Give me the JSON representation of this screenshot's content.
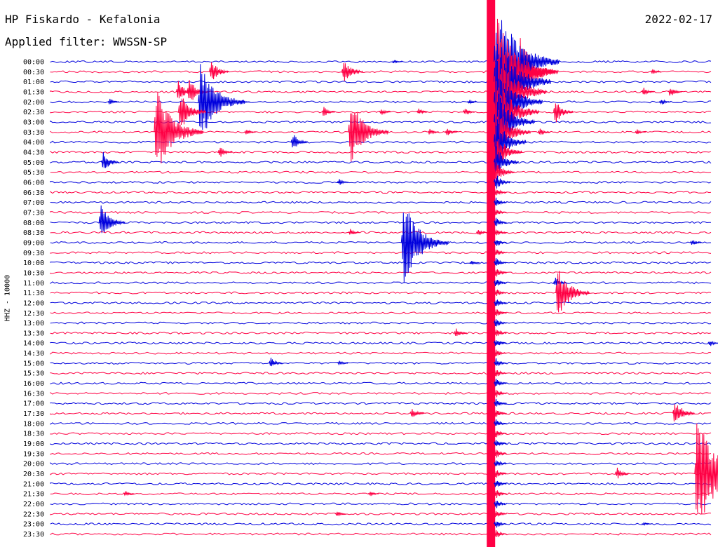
{
  "header": {
    "station": "HP Fiskardo - Kefalonia",
    "date": "2022-02-17",
    "filter": "Applied filter: WWSSN-SP"
  },
  "chart_data": {
    "type": "seismogram",
    "ylabel": "HHZ - 10000",
    "colors": {
      "odd_trace": "#0000dd",
      "even_trace": "#ff0044"
    },
    "rows": [
      "00:00",
      "00:30",
      "01:00",
      "01:30",
      "02:00",
      "02:30",
      "03:00",
      "03:30",
      "04:00",
      "04:30",
      "05:00",
      "05:30",
      "06:00",
      "06:30",
      "07:00",
      "07:30",
      "08:00",
      "08:30",
      "09:00",
      "09:30",
      "10:00",
      "10:30",
      "11:00",
      "11:30",
      "12:00",
      "12:30",
      "13:00",
      "13:30",
      "14:00",
      "14:30",
      "15:00",
      "15:30",
      "16:00",
      "16:30",
      "17:00",
      "17:30",
      "18:00",
      "18:30",
      "19:00",
      "19:30",
      "20:00",
      "20:30",
      "21:00",
      "21:30",
      "22:00",
      "22:30",
      "23:00",
      "23:30"
    ],
    "events": [
      {
        "row": 0,
        "minute": 15.5,
        "amplitude": 3
      },
      {
        "row": 1,
        "minute": 7.2,
        "amplitude": 18
      },
      {
        "row": 1,
        "minute": 13.2,
        "amplitude": 20
      },
      {
        "row": 1,
        "minute": 21.2,
        "amplitude": 50
      },
      {
        "row": 1,
        "minute": 27.2,
        "amplitude": 4
      },
      {
        "row": 3,
        "minute": 5.7,
        "amplitude": 16
      },
      {
        "row": 3,
        "minute": 6.2,
        "amplitude": 20
      },
      {
        "row": 3,
        "minute": 26.8,
        "amplitude": 6
      },
      {
        "row": 3,
        "minute": 28.0,
        "amplitude": 8
      },
      {
        "row": 4,
        "minute": 2.6,
        "amplitude": 5
      },
      {
        "row": 4,
        "minute": 6.7,
        "amplitude": 60
      },
      {
        "row": 4,
        "minute": 8.6,
        "amplitude": 3
      },
      {
        "row": 4,
        "minute": 18.9,
        "amplitude": 3
      },
      {
        "row": 4,
        "minute": 27.6,
        "amplitude": 5
      },
      {
        "row": 5,
        "minute": 5.8,
        "amplitude": 30
      },
      {
        "row": 5,
        "minute": 12.3,
        "amplitude": 8
      },
      {
        "row": 5,
        "minute": 14.9,
        "amplitude": 5
      },
      {
        "row": 5,
        "minute": 16.6,
        "amplitude": 5
      },
      {
        "row": 5,
        "minute": 18.7,
        "amplitude": 6
      },
      {
        "row": 5,
        "minute": 22.8,
        "amplitude": 18
      },
      {
        "row": 7,
        "minute": 4.7,
        "amplitude": 65
      },
      {
        "row": 7,
        "minute": 8.8,
        "amplitude": 5
      },
      {
        "row": 7,
        "minute": 13.5,
        "amplitude": 50
      },
      {
        "row": 7,
        "minute": 17.1,
        "amplitude": 5
      },
      {
        "row": 7,
        "minute": 17.9,
        "amplitude": 6
      },
      {
        "row": 7,
        "minute": 22.1,
        "amplitude": 6
      },
      {
        "row": 7,
        "minute": 26.5,
        "amplitude": 4
      },
      {
        "row": 8,
        "minute": 10.9,
        "amplitude": 14
      },
      {
        "row": 9,
        "minute": 7.6,
        "amplitude": 9
      },
      {
        "row": 10,
        "minute": 2.3,
        "amplitude": 15
      },
      {
        "row": 12,
        "minute": 13.0,
        "amplitude": 5
      },
      {
        "row": 16,
        "minute": 2.2,
        "amplitude": 28
      },
      {
        "row": 17,
        "minute": 13.5,
        "amplitude": 5
      },
      {
        "row": 17,
        "minute": 19.3,
        "amplitude": 4
      },
      {
        "row": 18,
        "minute": 15.9,
        "amplitude": 62
      },
      {
        "row": 18,
        "minute": 29.0,
        "amplitude": 5
      },
      {
        "row": 20,
        "minute": 19.0,
        "amplitude": 3
      },
      {
        "row": 22,
        "minute": 22.8,
        "amplitude": 8
      },
      {
        "row": 23,
        "minute": 22.9,
        "amplitude": 40
      },
      {
        "row": 27,
        "minute": 18.3,
        "amplitude": 7
      },
      {
        "row": 28,
        "minute": 29.8,
        "amplitude": 5
      },
      {
        "row": 30,
        "minute": 9.9,
        "amplitude": 8
      },
      {
        "row": 30,
        "minute": 13.0,
        "amplitude": 4
      },
      {
        "row": 35,
        "minute": 16.3,
        "amplitude": 9
      },
      {
        "row": 35,
        "minute": 28.2,
        "amplitude": 22
      },
      {
        "row": 41,
        "minute": 25.6,
        "amplitude": 9
      },
      {
        "row": 41,
        "minute": 29.2,
        "amplitude": 85
      },
      {
        "row": 43,
        "minute": 3.3,
        "amplitude": 5
      },
      {
        "row": 43,
        "minute": 14.4,
        "amplitude": 4
      },
      {
        "row": 45,
        "minute": 12.9,
        "amplitude": 4
      },
      {
        "row": 46,
        "minute": 26.8,
        "amplitude": 2
      }
    ],
    "major_event": {
      "start_row": 0,
      "minute": 19.9,
      "end_row": 47,
      "amplitude": 90
    },
    "noise_amplitude": 1.4
  }
}
